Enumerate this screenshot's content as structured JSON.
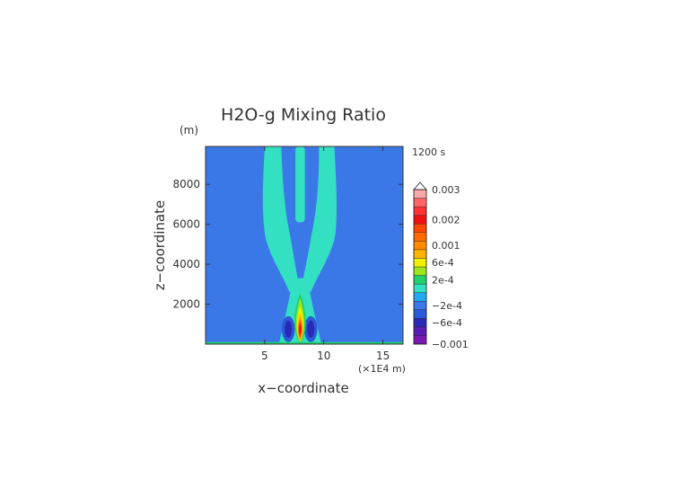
{
  "chart_data": {
    "type": "heatmap",
    "title": "H2O-g Mixing Ratio",
    "time_label": "1200 s",
    "z_unit": "(m)",
    "x_unit": "(×1E4 m)",
    "xlabel": "x−coordinate",
    "ylabel": "z−coordinate",
    "xlim": [
      0,
      16.7
    ],
    "ylim": [
      0,
      9900
    ],
    "x_ticks": [
      {
        "value": 5,
        "label": "5"
      },
      {
        "value": 10,
        "label": "10"
      },
      {
        "value": 15,
        "label": "15"
      }
    ],
    "y_ticks": [
      {
        "value": 2000,
        "label": "2000"
      },
      {
        "value": 4000,
        "label": "4000"
      },
      {
        "value": 6000,
        "label": "6000"
      },
      {
        "value": 8000,
        "label": "8000"
      }
    ],
    "background_value": -0.0001,
    "features": [
      {
        "name": "left plume arm",
        "value": 0.0001,
        "x": [
          7.8,
          3.1
        ],
        "z_range": [
          0,
          9900
        ]
      },
      {
        "name": "right plume arm",
        "value": 0.0001,
        "x": [
          8.2,
          9.8
        ],
        "z_range": [
          0,
          9900
        ]
      },
      {
        "name": "central column",
        "value": 0.0001,
        "x": [
          8.0
        ],
        "z_range": [
          6100,
          9900
        ]
      },
      {
        "name": "updraft core",
        "value": 0.002,
        "x": [
          8.0
        ],
        "z_range": [
          0,
          2500
        ]
      },
      {
        "name": "left negative lobe",
        "value": -0.0006,
        "x": [
          7.0
        ],
        "z_range": [
          100,
          1400
        ]
      },
      {
        "name": "right negative lobe",
        "value": -0.0006,
        "x": [
          8.9
        ],
        "z_range": [
          100,
          1400
        ]
      },
      {
        "name": "surface layer",
        "value": 0.0002,
        "x": [
          0,
          16.7
        ],
        "z_range": [
          0,
          100
        ]
      }
    ],
    "colorbar": {
      "labels": [
        "0.003",
        "0.002",
        "0.001",
        "6e-4",
        "2e-4",
        "−2e-4",
        "−6e-4",
        "−0.001"
      ],
      "label_values": [
        0.003,
        0.002,
        0.001,
        0.0006,
        0.0002,
        -0.0002,
        -0.0006,
        -0.001
      ],
      "levels": [
        {
          "value": -0.001,
          "color": "#7a18b0"
        },
        {
          "value": -0.0008,
          "color": "#5a1ab4"
        },
        {
          "value": -0.0006,
          "color": "#2a2ab8"
        },
        {
          "value": -0.0004,
          "color": "#2a5ad8"
        },
        {
          "value": -0.0002,
          "color": "#3a78e8"
        },
        {
          "value": 0,
          "color": "#22a9ee"
        },
        {
          "value": 0.0001,
          "color": "#33e0c2"
        },
        {
          "value": 0.0002,
          "color": "#22d16a"
        },
        {
          "value": 0.0004,
          "color": "#9de61e"
        },
        {
          "value": 0.0006,
          "color": "#f2f200"
        },
        {
          "value": 0.0008,
          "color": "#ffb400"
        },
        {
          "value": 0.001,
          "color": "#ff8c00"
        },
        {
          "value": 0.0013,
          "color": "#ff6a00"
        },
        {
          "value": 0.0016,
          "color": "#ff4a00"
        },
        {
          "value": 0.002,
          "color": "#ee1010"
        },
        {
          "value": 0.0023,
          "color": "#ff3333"
        },
        {
          "value": 0.0026,
          "color": "#ff6666"
        },
        {
          "value": 0.003,
          "color": "#ffaaaa"
        }
      ],
      "overflow_color": "#ffffff"
    }
  }
}
